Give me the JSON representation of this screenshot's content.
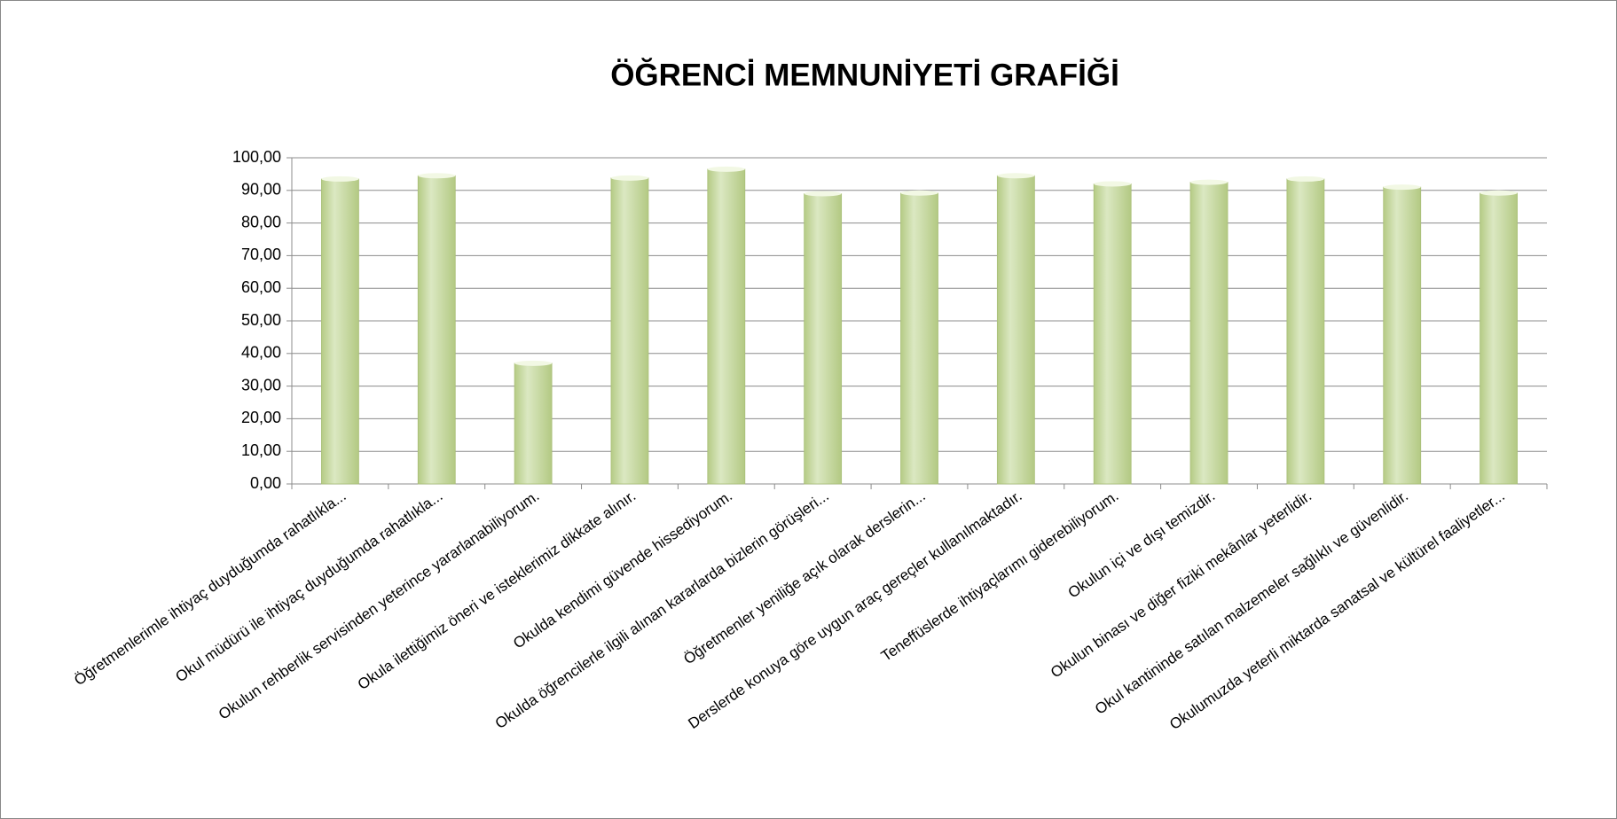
{
  "chart_data": {
    "type": "bar",
    "title": "ÖĞRENCİ MEMNUNİYETİ GRAFİĞİ",
    "categories": [
      "Öğretmenlerimle ihtiyaç duyduğumda rahatlıkla...",
      "Okul müdürü ile ihtiyaç duyduğumda rahatlıkla...",
      "Okulun rehberlik servisinden yeterince yararlanabiliyorum.",
      "Okula ilettiğimiz öneri ve isteklerimiz dikkate alınır.",
      "Okulda kendimi güvende hissediyorum.",
      "Okulda öğrencilerle ilgili alınan kararlarda bizlerin görüşleri...",
      "Öğretmenler yeniliğe açık olarak derslerin...",
      "Derslerde konuya göre uygun araç gereçler kullanılmaktadır.",
      "Teneffüslerde ihtiyaçlarımı giderebiliyorum.",
      "Okulun içi ve dışı temizdir.",
      "Okulun binası ve diğer fiziki mekânlar yeterlidir.",
      "Okul kantininde satılan malzemeler sağlıklı ve güvenlidir.",
      "Okulumuzda yeterli miktarda sanatsal ve kültürel faaliyetler..."
    ],
    "values": [
      93.5,
      94.5,
      37,
      93.8,
      96.5,
      89,
      89.2,
      94.5,
      92,
      92.5,
      93.5,
      91,
      89.2
    ],
    "color": "#c9db9f",
    "ylim": [
      0,
      100
    ],
    "yticks": [
      {
        "value": 0,
        "label": "0,00"
      },
      {
        "value": 10,
        "label": "10,00"
      },
      {
        "value": 20,
        "label": "20,00"
      },
      {
        "value": 30,
        "label": "30,00"
      },
      {
        "value": 40,
        "label": "40,00"
      },
      {
        "value": 50,
        "label": "50,00"
      },
      {
        "value": 60,
        "label": "60,00"
      },
      {
        "value": 70,
        "label": "70,00"
      },
      {
        "value": 80,
        "label": "80,00"
      },
      {
        "value": 90,
        "label": "90,00"
      },
      {
        "value": 100,
        "label": "100,00"
      }
    ],
    "grid": true
  }
}
